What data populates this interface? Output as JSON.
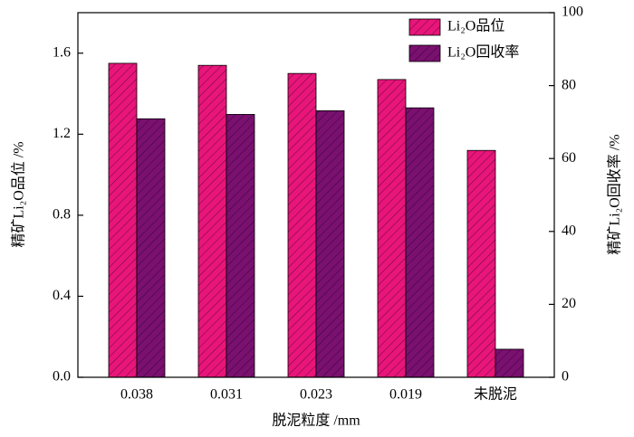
{
  "chart_data": {
    "type": "bar",
    "x_label": "脱泥粒度 /mm",
    "y_label": "精矿Li₂O品位 /%",
    "y2_label": "精矿Li₂O回收率 /%",
    "categories": [
      "0.038",
      "0.031",
      "0.023",
      "0.019",
      "未脱泥"
    ],
    "series": [
      {
        "name": "Li₂O品位",
        "color": "#e8157a",
        "values": [
          1.55,
          1.54,
          1.5,
          1.47,
          1.12
        ]
      },
      {
        "name": "Li₂O回收率",
        "color": "#7a1070",
        "axis": "y2",
        "values": [
          70.9,
          72.1,
          73.1,
          73.9,
          7.7
        ]
      }
    ],
    "ylim": [
      0,
      1.8
    ],
    "yticks": [
      {
        "value": 0,
        "label": "0.0"
      },
      {
        "value": 0.4,
        "label": "0.4"
      },
      {
        "value": 0.8,
        "label": "0.8"
      },
      {
        "value": 1.2,
        "label": "1.2"
      },
      {
        "value": 1.6,
        "label": "1.6"
      }
    ],
    "y2lim": [
      0,
      100
    ],
    "y2ticks": [
      0,
      20,
      40,
      60,
      80,
      100
    ],
    "legend": "upper right",
    "hatch": true
  }
}
